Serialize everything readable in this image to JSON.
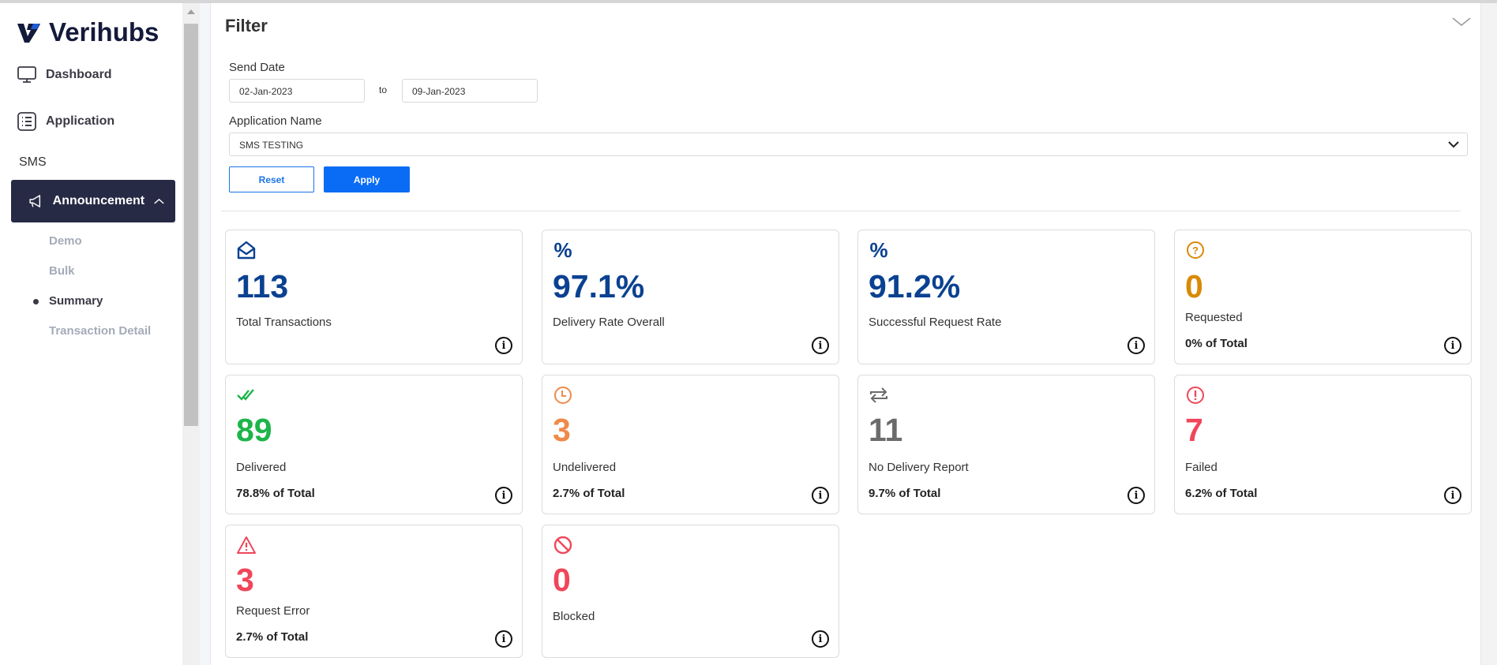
{
  "brand": "Verihubs",
  "sidebar": {
    "dashboard": "Dashboard",
    "application": "Application",
    "sms": "SMS",
    "announcement": "Announcement",
    "sub": [
      "Demo",
      "Bulk",
      "Summary",
      "Transaction Detail"
    ]
  },
  "filter": {
    "title": "Filter",
    "send_date_label": "Send Date",
    "date_from": "02-Jan-2023",
    "to": "to",
    "date_to": "09-Jan-2023",
    "app_label": "Application Name",
    "app_value": "SMS TESTING",
    "reset": "Reset",
    "apply": "Apply"
  },
  "colors": {
    "blue": "#0b4191",
    "green": "#1db44a",
    "orange": "#ef8a4a",
    "gray": "#6b6b6b",
    "red": "#f0465a",
    "amber": "#d88a06"
  },
  "cards": [
    {
      "value": "113",
      "label": "Total Transactions",
      "icon": "envelope-open-icon"
    },
    {
      "value": "97.1%",
      "label": "Delivery Rate Overall",
      "icon": "percent-icon",
      "glyph": "%"
    },
    {
      "value": "91.2%",
      "label": "Successful Request Rate",
      "icon": "percent-icon",
      "glyph": "%"
    },
    {
      "value": "0",
      "label": "Requested",
      "pct": "0% of Total",
      "icon": "question-circle-icon"
    },
    {
      "value": "89",
      "label": "Delivered",
      "pct": "78.8% of Total",
      "icon": "double-check-icon"
    },
    {
      "value": "3",
      "label": "Undelivered",
      "pct": "2.7% of Total",
      "icon": "clock-icon"
    },
    {
      "value": "11",
      "label": "No Delivery Report",
      "pct": "9.7% of Total",
      "icon": "repeat-icon"
    },
    {
      "value": "7",
      "label": "Failed",
      "pct": "6.2% of Total",
      "icon": "exclamation-circle-icon"
    },
    {
      "value": "3",
      "label": "Request Error",
      "pct": "2.7% of Total",
      "icon": "warning-icon"
    },
    {
      "value": "0",
      "label": "Blocked",
      "icon": "blocked-icon"
    }
  ]
}
